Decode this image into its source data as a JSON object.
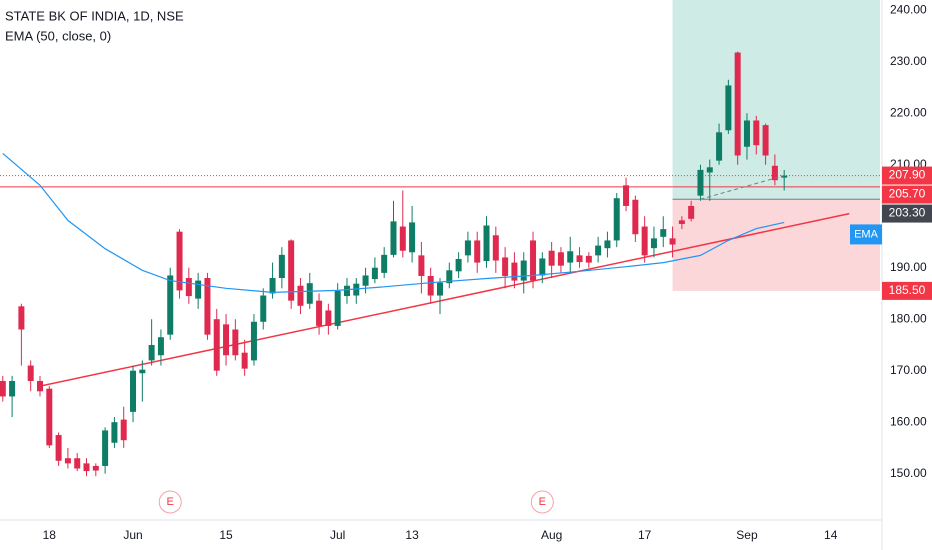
{
  "chart_data": {
    "type": "candlestick",
    "title": "STATE BK OF INDIA, 1D, NSE",
    "subtitle": "EMA (50, close, 0)",
    "up_color": "#0f7c66",
    "down_color": "#e0294f",
    "categories": [
      null,
      null,
      null,
      null,
      null,
      "18",
      null,
      null,
      null,
      null,
      null,
      null,
      null,
      null,
      "Jun",
      null,
      null,
      null,
      null,
      null,
      null,
      null,
      null,
      null,
      "15",
      null,
      null,
      null,
      null,
      null,
      null,
      null,
      null,
      null,
      null,
      null,
      "Jul",
      null,
      null,
      null,
      null,
      null,
      null,
      null,
      "13",
      null,
      null,
      null,
      null,
      null,
      null,
      null,
      null,
      null,
      null,
      null,
      null,
      null,
      null,
      "Aug",
      null,
      null,
      null,
      null,
      null,
      null,
      null,
      null,
      null,
      "17",
      null,
      null,
      null,
      null,
      null,
      null,
      null,
      null,
      null,
      null,
      "Sep",
      null,
      null,
      null,
      null,
      null,
      null,
      null,
      null,
      "14"
    ],
    "open": [
      168,
      165,
      182.5,
      171,
      168,
      166.5,
      157.5,
      153,
      153,
      152,
      151.5,
      151.5,
      156,
      160.5,
      162,
      169.5,
      172,
      173,
      177,
      197,
      188,
      184,
      188,
      180,
      179,
      178,
      173.5,
      172,
      179.5,
      185,
      188,
      195.3,
      186.5,
      183,
      183.6,
      181.7,
      178.7,
      184.5,
      184.6,
      186.5,
      187.8,
      189,
      192.5,
      198,
      193,
      192.4,
      188.4,
      184.6,
      187,
      189.3,
      192.4,
      195.3,
      191.3,
      196.3,
      192,
      191,
      187.5,
      195.3,
      188.5,
      193.3,
      193,
      191,
      192.4,
      192.3,
      192.4,
      193.8,
      195.3,
      206,
      203.2,
      198,
      193.8,
      196,
      195.7,
      199.2,
      202,
      204,
      208.5,
      210.8,
      216.7,
      231.8,
      213.5,
      218.6,
      217.7,
      209.8,
      207.5,
      null,
      null,
      null,
      null,
      null
    ],
    "high": [
      169,
      169,
      183,
      172,
      169,
      167,
      158,
      155,
      154,
      153,
      152,
      159,
      161,
      163,
      171,
      172,
      180,
      178,
      190,
      197.5,
      190,
      189,
      189,
      182,
      181,
      180,
      176,
      181,
      186,
      191,
      194,
      195.5,
      188,
      189,
      185,
      183,
      187,
      188,
      188,
      190,
      192,
      194,
      203,
      205,
      202,
      195,
      190,
      188,
      191,
      193,
      197,
      197,
      200,
      198,
      194,
      193,
      193,
      197,
      193,
      195,
      194,
      196,
      194,
      193,
      196,
      197,
      204.5,
      207.5,
      204,
      200,
      198,
      200,
      198,
      200,
      203,
      210,
      211,
      218,
      226.5,
      232,
      220,
      219.5,
      218,
      212,
      209,
      null,
      null,
      null,
      null,
      null
    ],
    "low": [
      164,
      161,
      171,
      166,
      165,
      155,
      151.5,
      151,
      150.5,
      149.5,
      149.5,
      150,
      155,
      155,
      160,
      164,
      171,
      171,
      176,
      184,
      183,
      182,
      176,
      169,
      171,
      172,
      169,
      171,
      178,
      184,
      186,
      182,
      181,
      182,
      177,
      177,
      178,
      183,
      183,
      185,
      187,
      188,
      192,
      192,
      191,
      185,
      183,
      181,
      186,
      188,
      191,
      189,
      190,
      189,
      186,
      186,
      185,
      186,
      187,
      188,
      189,
      189,
      190,
      190,
      191,
      192,
      194,
      201,
      195,
      191,
      192,
      194,
      192,
      197.5,
      199,
      203,
      203,
      210,
      216,
      210,
      211,
      212,
      210,
      206,
      205,
      null,
      null,
      null,
      null,
      null
    ],
    "close": [
      165,
      168,
      178,
      168,
      166,
      155.5,
      152.5,
      152,
      151,
      150.5,
      150.6,
      158.4,
      160,
      156.5,
      170,
      170.2,
      175,
      176.5,
      188.5,
      185.6,
      184.5,
      187.5,
      177,
      170,
      173,
      173,
      170.4,
      179.5,
      184.6,
      188,
      192.5,
      183.6,
      182.6,
      187,
      178.7,
      178.7,
      185.5,
      186.5,
      186.9,
      188.5,
      190,
      192.5,
      199,
      193.3,
      198.8,
      188.4,
      184.6,
      187.1,
      189.5,
      191.7,
      195.3,
      191,
      198.2,
      191.4,
      188.4,
      187.5,
      191.4,
      187.5,
      191.8,
      190.4,
      190.4,
      193.2,
      191.1,
      191,
      194.3,
      195.3,
      203.5,
      202,
      196.5,
      192.4,
      195.7,
      197.5,
      194.5,
      198.5,
      199.5,
      209,
      209.5,
      216.3,
      225.4,
      211.8,
      218.6,
      213.8,
      211.8,
      207,
      207.9,
      null,
      null,
      null,
      null,
      null
    ],
    "series": [
      {
        "name": "EMA",
        "color": "#2196f3",
        "x": [
          0,
          4,
          7,
          11,
          15,
          18,
          24,
          29,
          36,
          41,
          46,
          52,
          57,
          62,
          67,
          71,
          75,
          78,
          81,
          84
        ],
        "values": [
          212.2,
          206.0,
          199.2,
          193.7,
          189.5,
          187.5,
          186.0,
          185.2,
          185.6,
          186.3,
          187.1,
          187.9,
          188.5,
          189.3,
          190.2,
          191.0,
          192.4,
          195.3,
          197.6,
          198.8
        ]
      }
    ],
    "trendline": {
      "color": "#f23645",
      "x": [
        4,
        91
      ],
      "values": [
        167,
        200.5
      ]
    },
    "price_lines": [
      {
        "value": 207.9,
        "label": "207.90",
        "color": "#f23645",
        "style": "dotted"
      },
      {
        "value": 205.7,
        "label": "205.70",
        "color": "#f23645",
        "style": "solid"
      }
    ],
    "position": {
      "start": 72,
      "target": 242,
      "entry": {
        "value": 203.3,
        "label": "203.30"
      },
      "stop": {
        "value": 185.5,
        "label": "185.50"
      }
    },
    "events": [
      {
        "x": 18,
        "label": "E"
      },
      {
        "x": 58,
        "label": "E"
      }
    ],
    "xlim": [
      -0.3,
      94.3
    ],
    "ylim": [
      141,
      242
    ],
    "yticks": [
      {
        "value": 150,
        "label": "150.00"
      },
      {
        "value": 160,
        "label": "160.00"
      },
      {
        "value": 170,
        "label": "170.00"
      },
      {
        "value": 180,
        "label": "180.00"
      },
      {
        "value": 190,
        "label": "190.00"
      },
      {
        "value": 210,
        "label": "210.00"
      },
      {
        "value": 220,
        "label": "220.00"
      },
      {
        "value": 230,
        "label": "230.00"
      },
      {
        "value": 240,
        "label": "240.00"
      }
    ]
  }
}
